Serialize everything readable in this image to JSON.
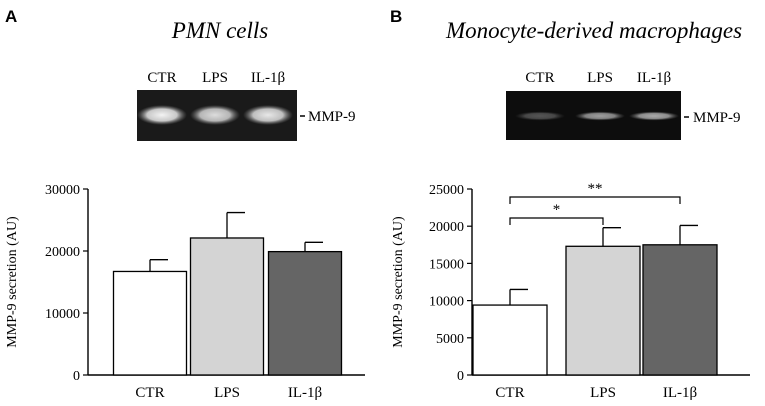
{
  "panels": [
    {
      "letter": "A",
      "title": "PMN cells",
      "blot": {
        "lanes": [
          "CTR",
          "LPS",
          "IL-1β"
        ],
        "band_label": "MMP-9",
        "band_strength": [
          0.95,
          0.85,
          0.9
        ]
      }
    },
    {
      "letter": "B",
      "title": "Monocyte-derived macrophages",
      "blot": {
        "lanes": [
          "CTR",
          "LPS",
          "IL-1β"
        ],
        "band_label": "MMP-9",
        "band_strength": [
          0.3,
          0.6,
          0.65
        ]
      },
      "significance": [
        {
          "from": "CTR",
          "to": "LPS",
          "label": "*"
        },
        {
          "from": "CTR",
          "to": "IL-1β",
          "label": "**"
        }
      ]
    }
  ],
  "chart_data": [
    {
      "type": "bar",
      "title": "",
      "xlabel": "",
      "ylabel": "MMP-9 secretion (AU)",
      "categories": [
        "CTR",
        "LPS",
        "IL-1β"
      ],
      "values": [
        16700,
        22100,
        19900
      ],
      "errors": [
        1900,
        4100,
        1500
      ],
      "colors": [
        "#ffffff",
        "#d4d4d4",
        "#656565"
      ],
      "ylim": [
        0,
        30000
      ],
      "yticks": [
        "0",
        "10000",
        "20000",
        "30000"
      ],
      "grid": false
    },
    {
      "type": "bar",
      "title": "",
      "xlabel": "",
      "ylabel": "MMP-9 secretion (AU)",
      "categories": [
        "CTR",
        "LPS",
        "IL-1β"
      ],
      "values": [
        9400,
        17300,
        17500
      ],
      "errors": [
        2100,
        2500,
        2600
      ],
      "colors": [
        "#ffffff",
        "#d4d4d4",
        "#656565"
      ],
      "ylim": [
        0,
        25000
      ],
      "yticks": [
        "0",
        "5000",
        "10000",
        "15000",
        "20000",
        "25000"
      ],
      "grid": false
    }
  ]
}
